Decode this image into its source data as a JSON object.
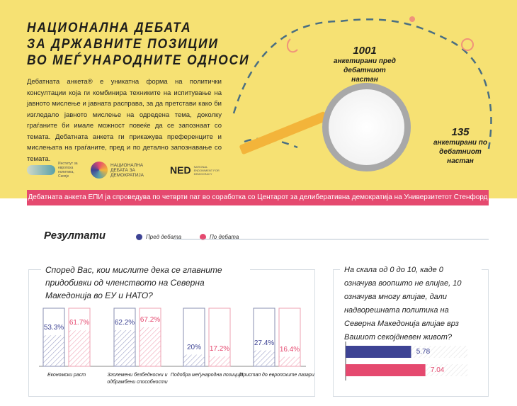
{
  "header": {
    "title": "НАЦИОНАЛНА ДЕБАТА\nЗА ДРЖАВНИТЕ ПОЗИЦИИ\nВО МЕЃУНАРОДНИТЕ ОДНОСИ",
    "intro": "Дебатната анкета® е уникатна форма на политички консултации која ги комбинира техниките на испитување на јавното мислење и јавната расправа, за да претстави како би изгледало јавното мислење на одредена тема, доколку граѓаните би имале можност повеќе да се запознаат со темата. Дебатната анкета ги прикажува преференците и мислењата на граѓаните, пред и по детално запознавање со темата.",
    "logos": [
      "Институт за европска политика, Скопје",
      "НАЦИОНАЛНА ДЕБАТА ЗА ДЕМОКРАТИЈА",
      "NED",
      "NATIONAL ENDOWMENT FOR DEMOCRACY"
    ]
  },
  "stats": [
    {
      "num": "1001",
      "label": "анкетирани пред дебатниот настан"
    },
    {
      "num": "135",
      "label": "анкетирани по дебатниот настан"
    }
  ],
  "banner": "Дебатната анкета ЕПИ ја спроведува по четврти пат во соработка со Центарот за делиберативна демократија на Универзитетот Стенфорд од САД.",
  "results": {
    "title": "Резултати",
    "legend": [
      {
        "label": "Пред дебата",
        "color": "#3d4394"
      },
      {
        "label": "По дебата",
        "color": "#e5496f"
      }
    ]
  },
  "chart_data": [
    {
      "type": "bar",
      "title": "Според Вас, кои мислите дека се главните придобивки од членството на Северна Македонија во ЕУ и НАТО?",
      "categories": [
        "Економски раст",
        "Зголемени безбедносни и одбрамбени способности",
        "Подобра меѓународна позиција",
        "Пристап до европските пазари"
      ],
      "series": [
        {
          "name": "Пред дебата",
          "values": [
            53.3,
            62.2,
            20,
            27.4
          ],
          "labels": [
            "53.3%",
            "62.2%",
            "20%",
            "27.4%"
          ]
        },
        {
          "name": "По дебата",
          "values": [
            61.7,
            67.2,
            17.2,
            16.4
          ],
          "labels": [
            "61.7%",
            "67.2%",
            "17.2%",
            "16.4%"
          ]
        }
      ],
      "ylim": [
        0,
        100
      ],
      "unit": "%"
    },
    {
      "type": "bar",
      "orientation": "horizontal",
      "title": "На скала од 0 до 10, каде 0 означува воопшто не влијае, 10 означува многу влијае, дали надворешната политика на Северна Македонија влијае врз Вашиот секојдневен живот?",
      "categories": [
        "Пред дебата",
        "По дебата"
      ],
      "values": [
        5.78,
        7.04
      ],
      "labels": [
        "5.78",
        "7.04"
      ],
      "xlim": [
        0,
        10
      ]
    }
  ]
}
